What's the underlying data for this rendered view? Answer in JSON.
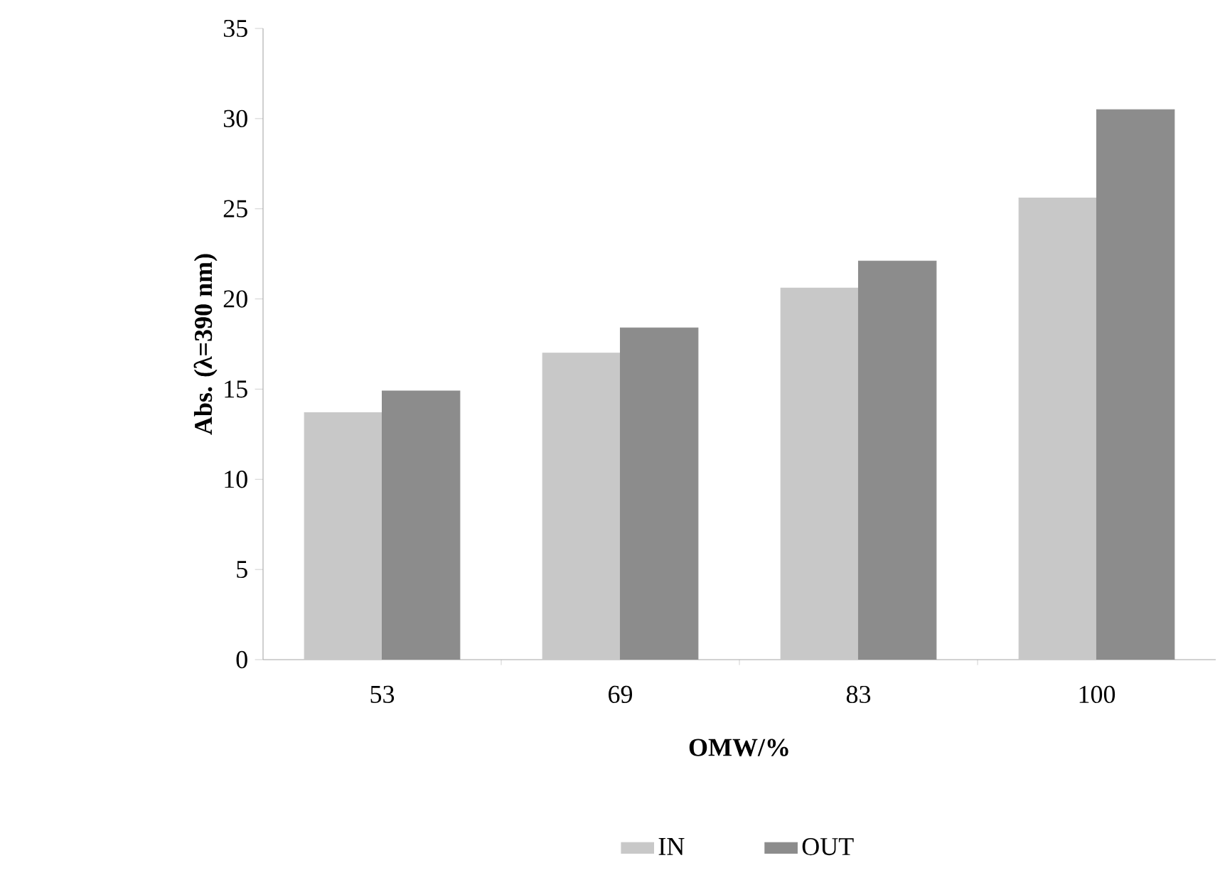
{
  "chart_data": {
    "type": "bar",
    "xlabel": "OMW/%",
    "ylabel": "Abs. (λ=390 nm)",
    "categories": [
      "53",
      "69",
      "83",
      "100"
    ],
    "series": [
      {
        "name": "IN",
        "color": "#c8c8c8",
        "values": [
          13.7,
          17.0,
          20.6,
          25.6
        ]
      },
      {
        "name": "OUT",
        "color": "#8c8c8c",
        "values": [
          14.9,
          18.4,
          22.1,
          30.5
        ]
      }
    ],
    "ylim": [
      0,
      35
    ],
    "yticks": [
      0,
      5,
      10,
      15,
      20,
      25,
      30,
      35
    ],
    "grid": false,
    "legend": "bottom"
  }
}
